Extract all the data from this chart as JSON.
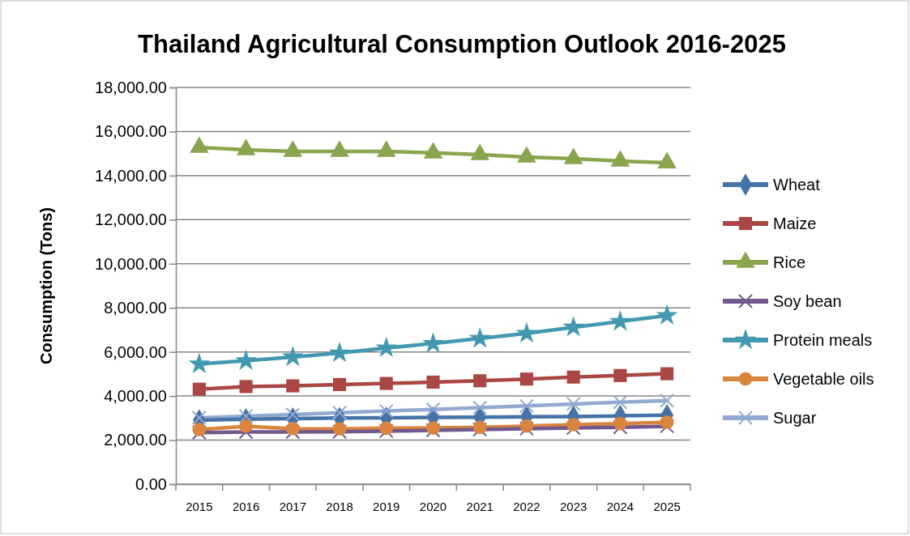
{
  "chart_data": {
    "type": "line",
    "title": "Thailand Agricultural Consumption Outlook 2016-2025",
    "ylabel": "Consumption (Tons)",
    "categories": [
      "2015",
      "2016",
      "2017",
      "2018",
      "2019",
      "2020",
      "2021",
      "2022",
      "2023",
      "2024",
      "2025"
    ],
    "ylim": [
      0,
      18000
    ],
    "yticks": [
      {
        "value": 0,
        "label": "0.00"
      },
      {
        "value": 2000,
        "label": "2,000.00"
      },
      {
        "value": 4000,
        "label": "4,000.00"
      },
      {
        "value": 6000,
        "label": "6,000.00"
      },
      {
        "value": 8000,
        "label": "8,000.00"
      },
      {
        "value": 10000,
        "label": "10,000.00"
      },
      {
        "value": 12000,
        "label": "12,000.00"
      },
      {
        "value": 14000,
        "label": "14,000.00"
      },
      {
        "value": 16000,
        "label": "16,000.00"
      },
      {
        "value": 18000,
        "label": "18,000.00"
      }
    ],
    "grid": "y",
    "legend": "right",
    "series": [
      {
        "name": "Wheat",
        "color": "#4572a7",
        "marker": "diamond",
        "values": [
          2900,
          2950,
          2980,
          3000,
          3010,
          3030,
          3040,
          3060,
          3070,
          3100,
          3130
        ]
      },
      {
        "name": "Maize",
        "color": "#aa4643",
        "marker": "square",
        "values": [
          4310,
          4430,
          4460,
          4520,
          4570,
          4630,
          4690,
          4770,
          4860,
          4930,
          5010
        ]
      },
      {
        "name": "Rice",
        "color": "#89a54e",
        "marker": "triangle",
        "values": [
          15280,
          15170,
          15100,
          15100,
          15100,
          15030,
          14950,
          14840,
          14770,
          14660,
          14580
        ]
      },
      {
        "name": "Soy bean",
        "color": "#71588f",
        "marker": "cross",
        "values": [
          2340,
          2370,
          2370,
          2380,
          2410,
          2440,
          2480,
          2520,
          2550,
          2580,
          2630
        ]
      },
      {
        "name": "Protein meals",
        "color": "#4198af",
        "marker": "star",
        "values": [
          5450,
          5600,
          5770,
          5950,
          6180,
          6380,
          6610,
          6840,
          7120,
          7380,
          7650
        ]
      },
      {
        "name": "Vegetable oils",
        "color": "#db843d",
        "marker": "circle",
        "values": [
          2480,
          2630,
          2520,
          2510,
          2540,
          2550,
          2580,
          2640,
          2700,
          2750,
          2810
        ]
      },
      {
        "name": "Sugar",
        "color": "#93a9cf",
        "marker": "cross",
        "values": [
          3010,
          3090,
          3160,
          3240,
          3320,
          3390,
          3470,
          3550,
          3640,
          3720,
          3790
        ]
      }
    ]
  }
}
